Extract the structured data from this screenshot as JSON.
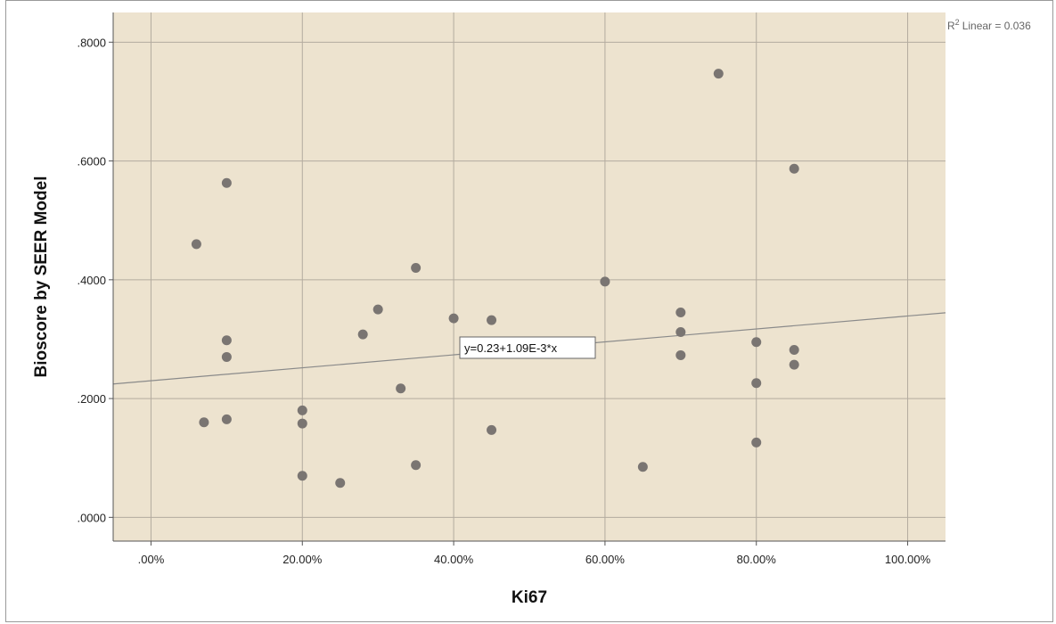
{
  "chart_data": {
    "type": "scatter",
    "xlabel": "Ki67",
    "ylabel": "Bioscore by SEER Model",
    "xlim": [
      -5,
      105
    ],
    "ylim": [
      -0.04,
      0.85
    ],
    "x_ticks": [
      0,
      20,
      40,
      60,
      80,
      100
    ],
    "x_tick_labels": [
      ".00%",
      "20.00%",
      "40.00%",
      "60.00%",
      "80.00%",
      "100.00%"
    ],
    "y_ticks": [
      0,
      0.2,
      0.4,
      0.6,
      0.8
    ],
    "y_tick_labels": [
      ".0000",
      ".2000",
      ".4000",
      ".6000",
      ".8000"
    ],
    "grid": true,
    "points": [
      {
        "x": 6,
        "y": 0.46
      },
      {
        "x": 7,
        "y": 0.16
      },
      {
        "x": 10,
        "y": 0.563
      },
      {
        "x": 10,
        "y": 0.298
      },
      {
        "x": 10,
        "y": 0.27
      },
      {
        "x": 10,
        "y": 0.165
      },
      {
        "x": 20,
        "y": 0.18
      },
      {
        "x": 20,
        "y": 0.158
      },
      {
        "x": 20,
        "y": 0.07
      },
      {
        "x": 25,
        "y": 0.058
      },
      {
        "x": 28,
        "y": 0.308
      },
      {
        "x": 30,
        "y": 0.35
      },
      {
        "x": 33,
        "y": 0.217
      },
      {
        "x": 35,
        "y": 0.42
      },
      {
        "x": 35,
        "y": 0.088
      },
      {
        "x": 40,
        "y": 0.335
      },
      {
        "x": 45,
        "y": 0.332
      },
      {
        "x": 45,
        "y": 0.147
      },
      {
        "x": 60,
        "y": 0.397
      },
      {
        "x": 65,
        "y": 0.085
      },
      {
        "x": 70,
        "y": 0.345
      },
      {
        "x": 70,
        "y": 0.312
      },
      {
        "x": 70,
        "y": 0.273
      },
      {
        "x": 75,
        "y": 0.747
      },
      {
        "x": 80,
        "y": 0.295
      },
      {
        "x": 80,
        "y": 0.226
      },
      {
        "x": 80,
        "y": 0.126
      },
      {
        "x": 85,
        "y": 0.587
      },
      {
        "x": 85,
        "y": 0.282
      },
      {
        "x": 85,
        "y": 0.257
      }
    ],
    "fit_line": {
      "intercept": 0.23,
      "slope": 0.00109
    },
    "fit_equation": "y=0.23+1.09E-3*x",
    "r2_label": "Linear = 0.036",
    "r2_prefix": "R",
    "r2_superscript": "2",
    "colors": {
      "plot_bg": "#ede3cf",
      "grid": "#b3ab9f",
      "point": "#7a7572",
      "line": "#8a8a8a",
      "axis": "#555555"
    }
  }
}
